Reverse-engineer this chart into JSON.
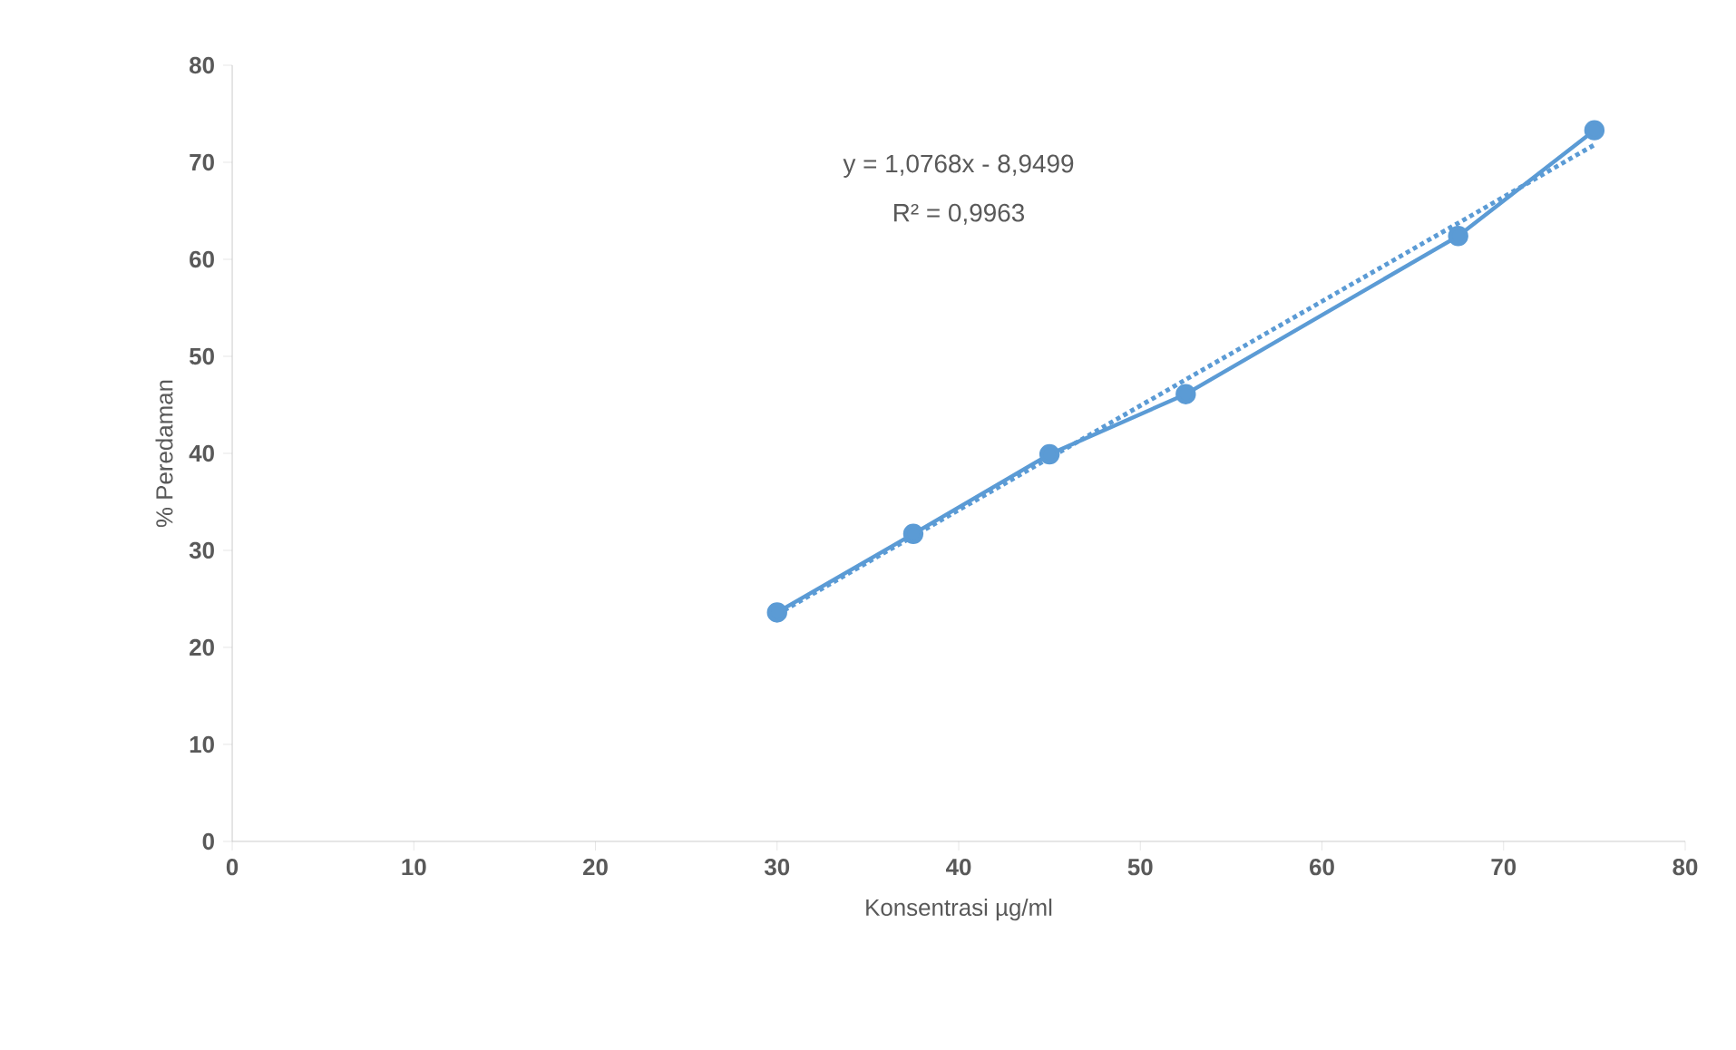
{
  "chart_data": {
    "type": "line",
    "xlabel": "Konsentrasi µg/ml",
    "ylabel": "% Peredaman",
    "xlim": [
      0,
      80
    ],
    "xticks": [
      0,
      10,
      20,
      30,
      40,
      50,
      60,
      70,
      80
    ],
    "ylim": [
      0,
      80
    ],
    "yticks": [
      0,
      10,
      20,
      30,
      40,
      50,
      60,
      70,
      80
    ],
    "grid": false,
    "annotations": [
      "y = 1,0768x - 8,9499",
      "R² = 0,9963"
    ],
    "series": [
      {
        "color": "#5b9bd5",
        "x": [
          30,
          37.5,
          45,
          52.5,
          67.5,
          75
        ],
        "values": [
          23.6,
          31.7,
          39.9,
          46.1,
          62.4,
          73.3
        ],
        "marker": "circle",
        "line_style": "solid"
      },
      {
        "color": "#5b9bd5",
        "x": [
          30,
          75
        ],
        "values": [
          23.4,
          71.8
        ],
        "marker": "none",
        "line_style": "dotted"
      }
    ]
  }
}
